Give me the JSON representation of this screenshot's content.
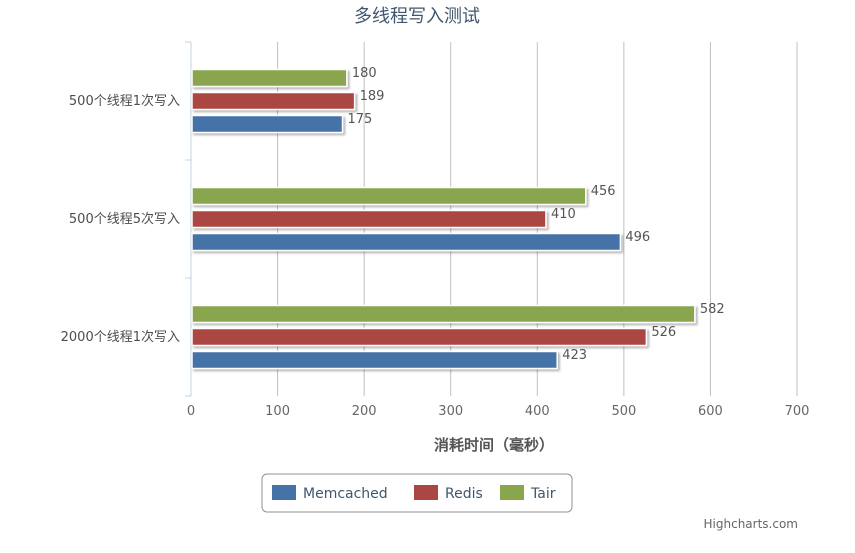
{
  "chart_data": {
    "type": "bar",
    "orientation": "horizontal",
    "title": "多线程写入测试",
    "xlabel": "",
    "ylabel": "消耗时间（毫秒）",
    "categories": [
      "500个线程1次写入",
      "500个线程5次写入",
      "2000个线程1次写入"
    ],
    "series": [
      {
        "name": "Tair",
        "color": "#89a54e",
        "values": [
          180,
          456,
          582
        ]
      },
      {
        "name": "Redis",
        "color": "#aa4643",
        "values": [
          189,
          410,
          526
        ]
      },
      {
        "name": "Memcached",
        "color": "#4572a7",
        "values": [
          175,
          496,
          423
        ]
      }
    ],
    "legend_order": [
      "Memcached",
      "Redis",
      "Tair"
    ],
    "value_ticks": [
      0,
      100,
      200,
      300,
      400,
      500,
      600,
      700
    ],
    "ylim": [
      0,
      700
    ],
    "grid": true,
    "data_labels": true,
    "legend_position": "bottom-center",
    "credits": "Highcharts.com"
  }
}
